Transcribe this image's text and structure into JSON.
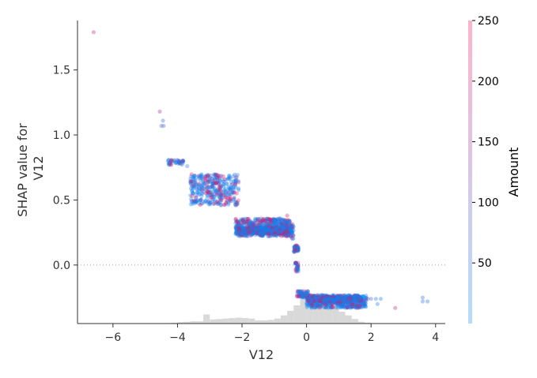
{
  "chart_data": {
    "type": "scatter",
    "xlabel": "V12",
    "ylabel_lines": [
      "SHAP value for",
      "V12"
    ],
    "colorbar_label": "Amount",
    "xlim": [
      -7.1,
      4.3
    ],
    "ylim": [
      -0.45,
      1.88
    ],
    "xticks": [
      -6,
      -4,
      -2,
      0,
      2,
      4
    ],
    "yticks": [
      0.0,
      0.5,
      1.0,
      1.5
    ],
    "colorbar_range": [
      0,
      250
    ],
    "colorbar_ticks": [
      50,
      100,
      150,
      200,
      250
    ],
    "colors": {
      "low": "#008afb",
      "high": "#ff0052",
      "histogram": "#d9d9d9",
      "zero_line": "#999999"
    },
    "zero_line": true,
    "histogram": [
      {
        "x0": -4.8,
        "x1": -4.6,
        "h": 0.003
      },
      {
        "x0": -4.6,
        "x1": -4.4,
        "h": 0.003
      },
      {
        "x0": -4.4,
        "x1": -4.2,
        "h": 0.005
      },
      {
        "x0": -4.2,
        "x1": -4.0,
        "h": 0.008
      },
      {
        "x0": -4.0,
        "x1": -3.8,
        "h": 0.015
      },
      {
        "x0": -3.8,
        "x1": -3.6,
        "h": 0.02
      },
      {
        "x0": -3.6,
        "x1": -3.4,
        "h": 0.025
      },
      {
        "x0": -3.4,
        "x1": -3.2,
        "h": 0.025
      },
      {
        "x0": -3.2,
        "x1": -3.0,
        "h": 0.1
      },
      {
        "x0": -3.0,
        "x1": -2.8,
        "h": 0.045
      },
      {
        "x0": -2.8,
        "x1": -2.6,
        "h": 0.05
      },
      {
        "x0": -2.6,
        "x1": -2.4,
        "h": 0.055
      },
      {
        "x0": -2.4,
        "x1": -2.2,
        "h": 0.06
      },
      {
        "x0": -2.2,
        "x1": -2.0,
        "h": 0.065
      },
      {
        "x0": -2.0,
        "x1": -1.8,
        "h": 0.06
      },
      {
        "x0": -1.8,
        "x1": -1.6,
        "h": 0.055
      },
      {
        "x0": -1.6,
        "x1": -1.4,
        "h": 0.035
      },
      {
        "x0": -1.4,
        "x1": -1.2,
        "h": 0.035
      },
      {
        "x0": -1.2,
        "x1": -1.0,
        "h": 0.04
      },
      {
        "x0": -1.0,
        "x1": -0.8,
        "h": 0.055
      },
      {
        "x0": -0.8,
        "x1": -0.6,
        "h": 0.09
      },
      {
        "x0": -0.6,
        "x1": -0.4,
        "h": 0.14
      },
      {
        "x0": -0.4,
        "x1": -0.2,
        "h": 0.2
      },
      {
        "x0": -0.2,
        "x1": 0.0,
        "h": 0.27
      },
      {
        "x0": 0.0,
        "x1": 0.2,
        "h": 0.3
      },
      {
        "x0": 0.2,
        "x1": 0.4,
        "h": 0.26
      },
      {
        "x0": 0.4,
        "x1": 0.6,
        "h": 0.24
      },
      {
        "x0": 0.6,
        "x1": 0.8,
        "h": 0.22
      },
      {
        "x0": 0.8,
        "x1": 1.0,
        "h": 0.18
      },
      {
        "x0": 1.0,
        "x1": 1.2,
        "h": 0.13
      },
      {
        "x0": 1.2,
        "x1": 1.4,
        "h": 0.09
      },
      {
        "x0": 1.4,
        "x1": 1.6,
        "h": 0.05
      },
      {
        "x0": 1.6,
        "x1": 1.8,
        "h": 0.02
      },
      {
        "x0": 1.8,
        "x1": 2.0,
        "h": 0.01
      },
      {
        "x0": 2.0,
        "x1": 2.2,
        "h": 0.005
      }
    ],
    "clusters": [
      {
        "x": [
          -2.2,
          -0.5
        ],
        "y": [
          0.22,
          0.36
        ],
        "n": 520
      },
      {
        "x": [
          -2.2,
          -0.5
        ],
        "y": [
          0.24,
          0.29
        ],
        "n": 380
      },
      {
        "x": [
          -3.6,
          -2.1
        ],
        "y": [
          0.46,
          0.7
        ],
        "n": 360
      },
      {
        "x": [
          0.0,
          1.85
        ],
        "y": [
          -0.33,
          -0.23
        ],
        "n": 520
      },
      {
        "x": [
          0.0,
          1.7
        ],
        "y": [
          -0.28,
          -0.24
        ],
        "n": 320
      },
      {
        "x": [
          -0.4,
          -0.25
        ],
        "y": [
          0.1,
          0.15
        ],
        "n": 40
      },
      {
        "x": [
          -0.35,
          -0.25
        ],
        "y": [
          -0.05,
          0.02
        ],
        "n": 30
      },
      {
        "x": [
          -0.3,
          0.05
        ],
        "y": [
          -0.25,
          -0.2
        ],
        "n": 60
      },
      {
        "x": [
          -0.5,
          -0.4
        ],
        "y": [
          0.2,
          0.32
        ],
        "n": 30
      },
      {
        "x": [
          -4.3,
          -3.8
        ],
        "y": [
          0.77,
          0.81
        ],
        "n": 40
      }
    ],
    "points": [
      {
        "x": -6.6,
        "y": 1.79,
        "a": 0.7
      },
      {
        "x": -4.55,
        "y": 1.18,
        "a": 0.65
      },
      {
        "x": -4.45,
        "y": 1.11,
        "a": 0.2
      },
      {
        "x": -4.5,
        "y": 1.07,
        "a": 0.3
      },
      {
        "x": -4.43,
        "y": 1.07,
        "a": 0.25
      },
      {
        "x": -4.1,
        "y": 0.8,
        "a": 0.15
      },
      {
        "x": -3.9,
        "y": 0.78,
        "a": 0.3
      },
      {
        "x": -3.7,
        "y": 0.76,
        "a": 0.15
      },
      {
        "x": -3.5,
        "y": 0.66,
        "a": 0.1
      },
      {
        "x": -2.3,
        "y": 0.62,
        "a": 0.7
      },
      {
        "x": -0.6,
        "y": 0.38,
        "a": 0.85
      },
      {
        "x": -0.3,
        "y": 0.15,
        "a": 0.8
      },
      {
        "x": 0.1,
        "y": -0.26,
        "a": 0.2
      },
      {
        "x": 1.9,
        "y": -0.26,
        "a": 0.5
      },
      {
        "x": 2.0,
        "y": -0.26,
        "a": 0.3
      },
      {
        "x": 2.15,
        "y": -0.26,
        "a": 0.15
      },
      {
        "x": 2.2,
        "y": -0.3,
        "a": 0.1
      },
      {
        "x": 2.3,
        "y": -0.26,
        "a": 0.1
      },
      {
        "x": 1.4,
        "y": -0.32,
        "a": 0.55
      },
      {
        "x": 1.6,
        "y": -0.33,
        "a": 0.6
      },
      {
        "x": 2.75,
        "y": -0.33,
        "a": 0.7
      },
      {
        "x": 3.6,
        "y": -0.25,
        "a": 0.15
      },
      {
        "x": 3.6,
        "y": -0.28,
        "a": 0.2
      },
      {
        "x": 3.75,
        "y": -0.28,
        "a": 0.15
      }
    ]
  }
}
